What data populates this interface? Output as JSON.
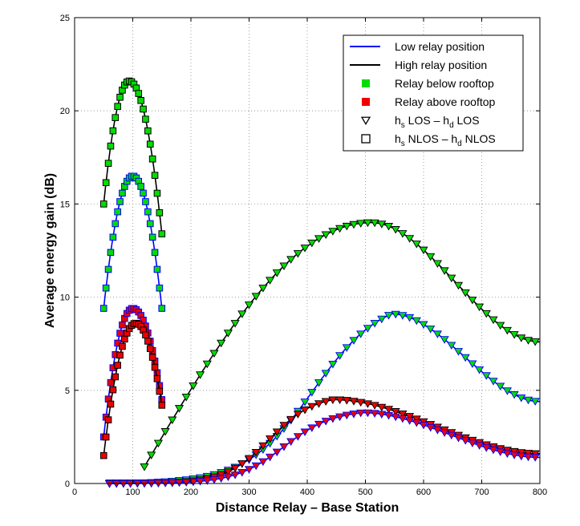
{
  "chart_data": {
    "type": "line",
    "title": "",
    "xlabel": "Distance Relay – Base Station",
    "ylabel": "Average energy gain (dB)",
    "xlim": [
      0,
      800
    ],
    "ylim": [
      0,
      25
    ],
    "xticks": [
      0,
      100,
      200,
      300,
      400,
      500,
      600,
      700,
      800
    ],
    "yticks": [
      0,
      5,
      10,
      15,
      20,
      25
    ],
    "grid": true,
    "legend_position": "top-right",
    "legend": [
      {
        "label": "Low relay position",
        "kind": "line",
        "color": "#0000ff"
      },
      {
        "label": "High relay position",
        "kind": "line",
        "color": "#000000"
      },
      {
        "label": "Relay below rooftop",
        "kind": "fill",
        "color": "#00dd00"
      },
      {
        "label": "Relay above rooftop",
        "kind": "fill",
        "color": "#ee0000"
      },
      {
        "label_parts": [
          "h",
          "s",
          " LOS – h",
          "d",
          " LOS"
        ],
        "kind": "marker",
        "marker": "triangle"
      },
      {
        "label_parts": [
          "h",
          "s",
          " NLOS – h",
          "d",
          " NLOS"
        ],
        "kind": "marker",
        "marker": "square"
      }
    ],
    "series": [
      {
        "name": "Low relay, below rooftop, NLOS-NLOS",
        "line_color": "#0000ff",
        "fill": "#00dd00",
        "marker": "square",
        "shape": "peak",
        "x0": 50,
        "x1": 150,
        "step": 4,
        "start": 9.4,
        "peak_x": 100,
        "peak": 16.5,
        "end": 9.4
      },
      {
        "name": "High relay, below rooftop, NLOS-NLOS",
        "line_color": "#000000",
        "fill": "#00dd00",
        "marker": "square",
        "shape": "peak",
        "x0": 50,
        "x1": 150,
        "step": 4,
        "start": 15.0,
        "peak_x": 94,
        "peak": 21.6,
        "end": 13.4
      },
      {
        "name": "Low relay, above rooftop, NLOS-NLOS",
        "line_color": "#0000ff",
        "fill": "#ee0000",
        "marker": "square",
        "shape": "peak",
        "x0": 50,
        "x1": 150,
        "step": 4,
        "start": 2.5,
        "peak_x": 100,
        "peak": 9.4,
        "end": 4.5
      },
      {
        "name": "High relay, above rooftop, NLOS-NLOS",
        "line_color": "#000000",
        "fill": "#ee0000",
        "marker": "square",
        "shape": "peak",
        "x0": 50,
        "x1": 150,
        "step": 4,
        "start": 1.5,
        "peak_x": 105,
        "peak": 8.6,
        "end": 4.2
      },
      {
        "name": "High relay, below rooftop, LOS-LOS",
        "line_color": "#000000",
        "fill": "#00dd00",
        "marker": "triangle",
        "shape": "ramp",
        "x0": 120,
        "x1": 800,
        "step": 12,
        "start": 0.9,
        "peak_x": 510,
        "peak": 14.0,
        "end": 7.6,
        "tri_start": 60
      },
      {
        "name": "Low relay, below rooftop, LOS-LOS",
        "line_color": "#0000ff",
        "fill": "#00dd00",
        "marker": "triangle",
        "shape": "sigmoid",
        "x0": 60,
        "x1": 800,
        "step": 12,
        "start": 0.0,
        "peak_x": 545,
        "peak": 9.1,
        "end": 4.4,
        "mid_x": 410,
        "width": 58
      },
      {
        "name": "High relay, above rooftop, LOS-LOS",
        "line_color": "#000000",
        "fill": "#ee0000",
        "marker": "triangle",
        "shape": "sigmoid",
        "x0": 60,
        "x1": 800,
        "step": 12,
        "start": 0.0,
        "peak_x": 445,
        "peak": 4.5,
        "end": 1.6,
        "mid_x": 335,
        "width": 38
      },
      {
        "name": "Low relay, above rooftop, LOS-LOS",
        "line_color": "#0000ff",
        "fill": "#ee0000",
        "marker": "triangle",
        "shape": "sigmoid",
        "x0": 60,
        "x1": 800,
        "step": 12,
        "start": 0.0,
        "peak_x": 495,
        "peak": 3.8,
        "end": 1.4,
        "mid_x": 360,
        "width": 42
      }
    ]
  }
}
